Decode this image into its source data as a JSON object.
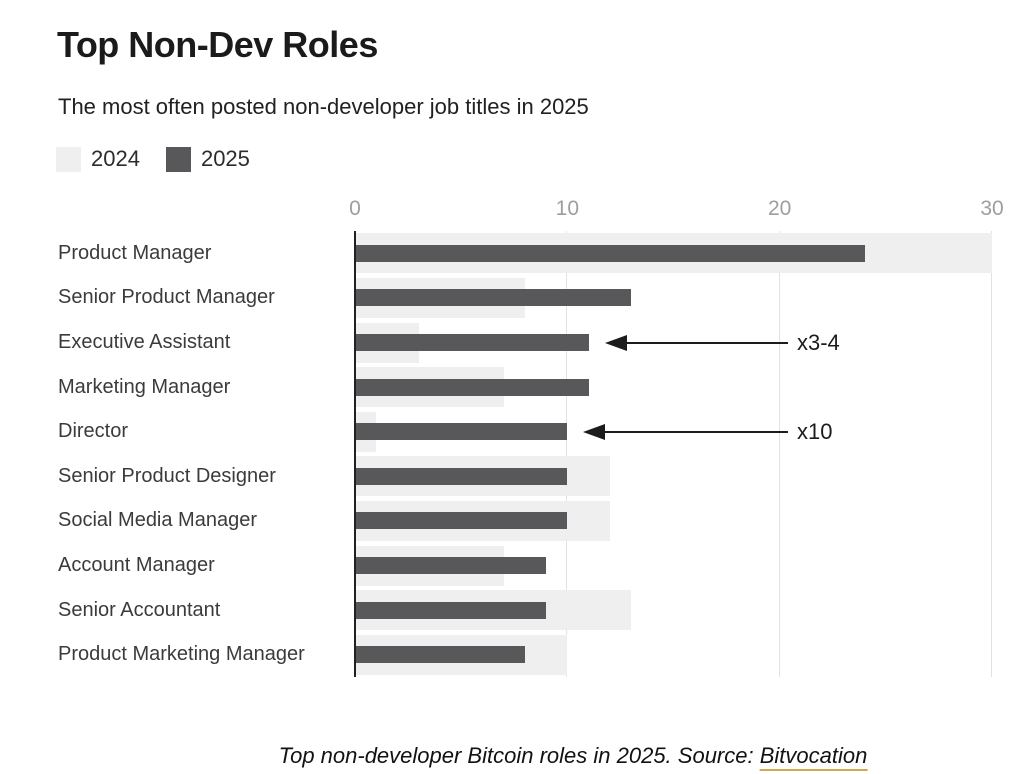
{
  "header": {
    "title": "Top Non-Dev Roles",
    "subtitle": "The most often posted non-developer job titles in 2025"
  },
  "legend": {
    "items": [
      {
        "label": "2024",
        "color": "#efefef"
      },
      {
        "label": "2025",
        "color": "#58585a"
      }
    ]
  },
  "chart_data": {
    "type": "bar",
    "orientation": "horizontal",
    "title": "Top Non-Dev Roles",
    "subtitle": "The most often posted non-developer job titles in 2025",
    "categories": [
      "Product Manager",
      "Senior Product Manager",
      "Executive Assistant",
      "Marketing Manager",
      "Director",
      "Senior Product Designer",
      "Social Media Manager",
      "Account Manager",
      "Senior Accountant",
      "Product Marketing Manager"
    ],
    "series": [
      {
        "name": "2024",
        "color": "#efefef",
        "values": [
          30,
          8,
          3,
          7,
          1,
          12,
          12,
          7,
          13,
          10
        ]
      },
      {
        "name": "2025",
        "color": "#58585a",
        "values": [
          24,
          13,
          11,
          11,
          10,
          10,
          10,
          9,
          9,
          8
        ]
      }
    ],
    "xlim": [
      0,
      30
    ],
    "xticks": [
      0,
      10,
      20,
      30
    ],
    "grid": "vertical-light",
    "gridline_color": "#e2e2e2",
    "axis_line_color": "#202020",
    "tick_label_color": "#9e9e9e",
    "legend_position": "top-left",
    "annotations": [
      {
        "text": "x3-4",
        "category": "Executive Assistant",
        "series": "2025"
      },
      {
        "text": "x10",
        "category": "Director",
        "series": "2025"
      }
    ]
  },
  "caption": {
    "text": "Top non-developer Bitcoin roles in 2025. Source: ",
    "link_text": "Bitvocation",
    "link_underline_color": "#d2a94c"
  }
}
